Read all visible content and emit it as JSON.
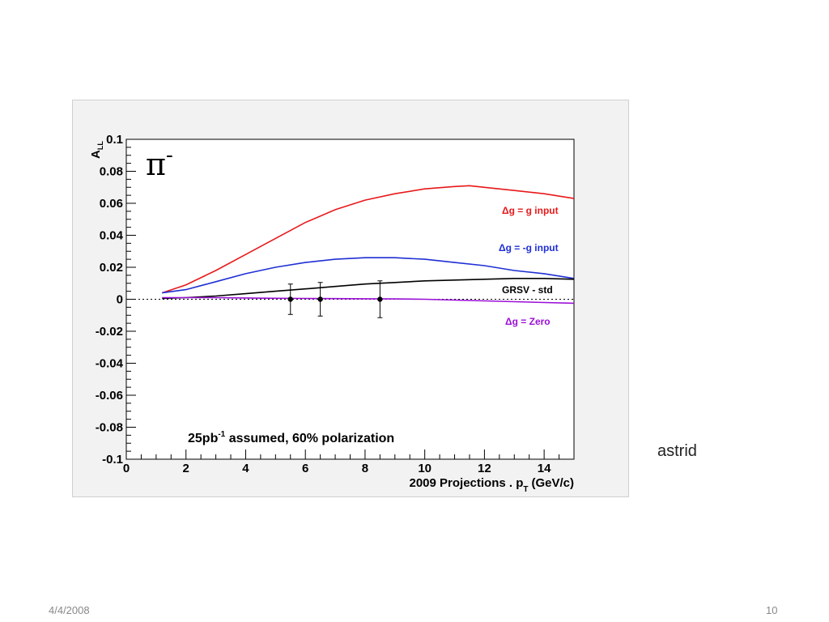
{
  "slide": {
    "side_note": "astrid",
    "footer_date": "4/4/2008",
    "page_number": "10"
  },
  "chart_data": {
    "type": "line",
    "title": "π",
    "title_superscript": "-",
    "xlabel": "2009 Projections . p",
    "xlabel_subscript": "T",
    "xlabel_unit": "(GeV/c)",
    "ylabel": "A",
    "ylabel_subscript": "LL",
    "annotation": {
      "prefix": "25pb",
      "superscript": "-1",
      "suffix": " assumed, 60% polarization"
    },
    "xlim": [
      0,
      15
    ],
    "ylim": [
      -0.1,
      0.1
    ],
    "x_ticks": [
      0,
      2,
      4,
      6,
      8,
      10,
      12,
      14
    ],
    "x_tick_labels": [
      "0",
      "2",
      "4",
      "6",
      "8",
      "10",
      "12",
      "14"
    ],
    "y_ticks": [
      0.1,
      0.08,
      0.06,
      0.04,
      0.02,
      0,
      -0.02,
      -0.04,
      -0.06,
      -0.08,
      -0.1
    ],
    "y_tick_labels": [
      "0.1",
      "0.08",
      "0.06",
      "0.04",
      "0.02",
      "0",
      "-0.02",
      "-0.04",
      "-0.06",
      "-0.08",
      "-0.1"
    ],
    "zero_reference_line": "dotted",
    "grid": false,
    "series": [
      {
        "name": "Δg = g input",
        "color": "#e8191b",
        "x": [
          1.2,
          2,
          3,
          4,
          5,
          6,
          7,
          8,
          9,
          10,
          11,
          11.5,
          12,
          13,
          14,
          15
        ],
        "y": [
          0.004,
          0.009,
          0.018,
          0.028,
          0.038,
          0.048,
          0.056,
          0.062,
          0.066,
          0.069,
          0.0705,
          0.071,
          0.07,
          0.068,
          0.066,
          0.063
        ]
      },
      {
        "name": "Δg = -g input",
        "color": "#1f2fd4",
        "x": [
          1.2,
          2,
          3,
          4,
          5,
          6,
          7,
          8,
          9,
          10,
          11,
          12,
          13,
          14,
          15
        ],
        "y": [
          0.004,
          0.006,
          0.011,
          0.016,
          0.02,
          0.023,
          0.025,
          0.026,
          0.026,
          0.025,
          0.023,
          0.021,
          0.018,
          0.016,
          0.013
        ]
      },
      {
        "name": "GRSV - std",
        "color": "#000000",
        "x": [
          1.2,
          2,
          3,
          4,
          5,
          6,
          7,
          8,
          9,
          10,
          11,
          12,
          13,
          14,
          15
        ],
        "y": [
          0.0005,
          0.001,
          0.002,
          0.0035,
          0.005,
          0.0065,
          0.008,
          0.0095,
          0.0105,
          0.0115,
          0.012,
          0.0125,
          0.013,
          0.013,
          0.0125
        ]
      },
      {
        "name": "Δg = Zero",
        "color": "#9b10d6",
        "x": [
          1.2,
          2,
          3,
          4,
          5,
          6,
          7,
          8,
          9,
          10,
          11,
          12,
          13,
          14,
          15
        ],
        "y": [
          0.001,
          0.001,
          0.001,
          0.0008,
          0.0006,
          0.0005,
          0.0004,
          0.0003,
          0.0002,
          0.0,
          -0.0005,
          -0.001,
          -0.0015,
          -0.002,
          -0.0025
        ]
      }
    ],
    "projection_points": {
      "x": [
        5.5,
        6.5,
        8.5
      ],
      "y": [
        0,
        0,
        0
      ],
      "yerr": [
        0.0095,
        0.0105,
        0.0115
      ]
    }
  }
}
